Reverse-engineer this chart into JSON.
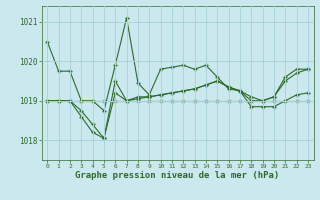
{
  "title": "Graphe pression niveau de la mer (hPa)",
  "background_color": "#cce8ef",
  "plot_bg_color": "#cce8ef",
  "grid_color": "#aad4dc",
  "line_color": "#2d6a2d",
  "marker_color": "#2d6a2d",
  "x_labels": [
    "0",
    "1",
    "2",
    "3",
    "4",
    "5",
    "6",
    "7",
    "8",
    "9",
    "10",
    "11",
    "12",
    "13",
    "14",
    "15",
    "16",
    "17",
    "18",
    "19",
    "20",
    "21",
    "22",
    "23"
  ],
  "x_values": [
    0,
    1,
    2,
    3,
    4,
    5,
    6,
    7,
    8,
    9,
    10,
    11,
    12,
    13,
    14,
    15,
    16,
    17,
    18,
    19,
    20,
    21,
    22,
    23
  ],
  "series": [
    [
      1020.5,
      1019.75,
      1019.75,
      1019.0,
      1019.0,
      1018.75,
      1019.9,
      1021.1,
      1019.45,
      1019.15,
      1019.8,
      1019.85,
      1019.9,
      1019.8,
      1019.9,
      1019.6,
      1019.3,
      1019.25,
      1019.1,
      1019.0,
      1019.1,
      1019.6,
      1019.8,
      1019.8
    ],
    [
      1019.0,
      1019.0,
      1019.0,
      1018.6,
      1018.2,
      1018.05,
      1019.2,
      1019.0,
      1019.05,
      1019.1,
      1019.15,
      1019.2,
      1019.25,
      1019.3,
      1019.4,
      1019.5,
      1019.35,
      1019.25,
      1018.85,
      1018.85,
      1018.85,
      1019.0,
      1019.15,
      1019.2
    ],
    [
      1019.0,
      1019.0,
      1019.0,
      1018.75,
      1018.4,
      1018.05,
      1019.5,
      1019.0,
      1019.1,
      1019.1,
      1019.15,
      1019.2,
      1019.25,
      1019.3,
      1019.4,
      1019.5,
      1019.35,
      1019.25,
      1019.0,
      1019.0,
      1019.1,
      1019.5,
      1019.7,
      1019.8
    ],
    [
      1019.0,
      1019.0,
      1019.0,
      1019.0,
      1019.0,
      1019.0,
      1019.0,
      1019.0,
      1019.0,
      1019.0,
      1019.0,
      1019.0,
      1019.0,
      1019.0,
      1019.0,
      1019.0,
      1019.0,
      1019.0,
      1019.0,
      1019.0,
      1019.0,
      1019.0,
      1019.0,
      1019.0
    ]
  ],
  "ylim": [
    1017.5,
    1021.4
  ],
  "yticks": [
    1018,
    1019,
    1020,
    1021
  ],
  "ytick_fontsize": 5.5,
  "xtick_fontsize": 4.5,
  "title_fontsize": 6.5
}
